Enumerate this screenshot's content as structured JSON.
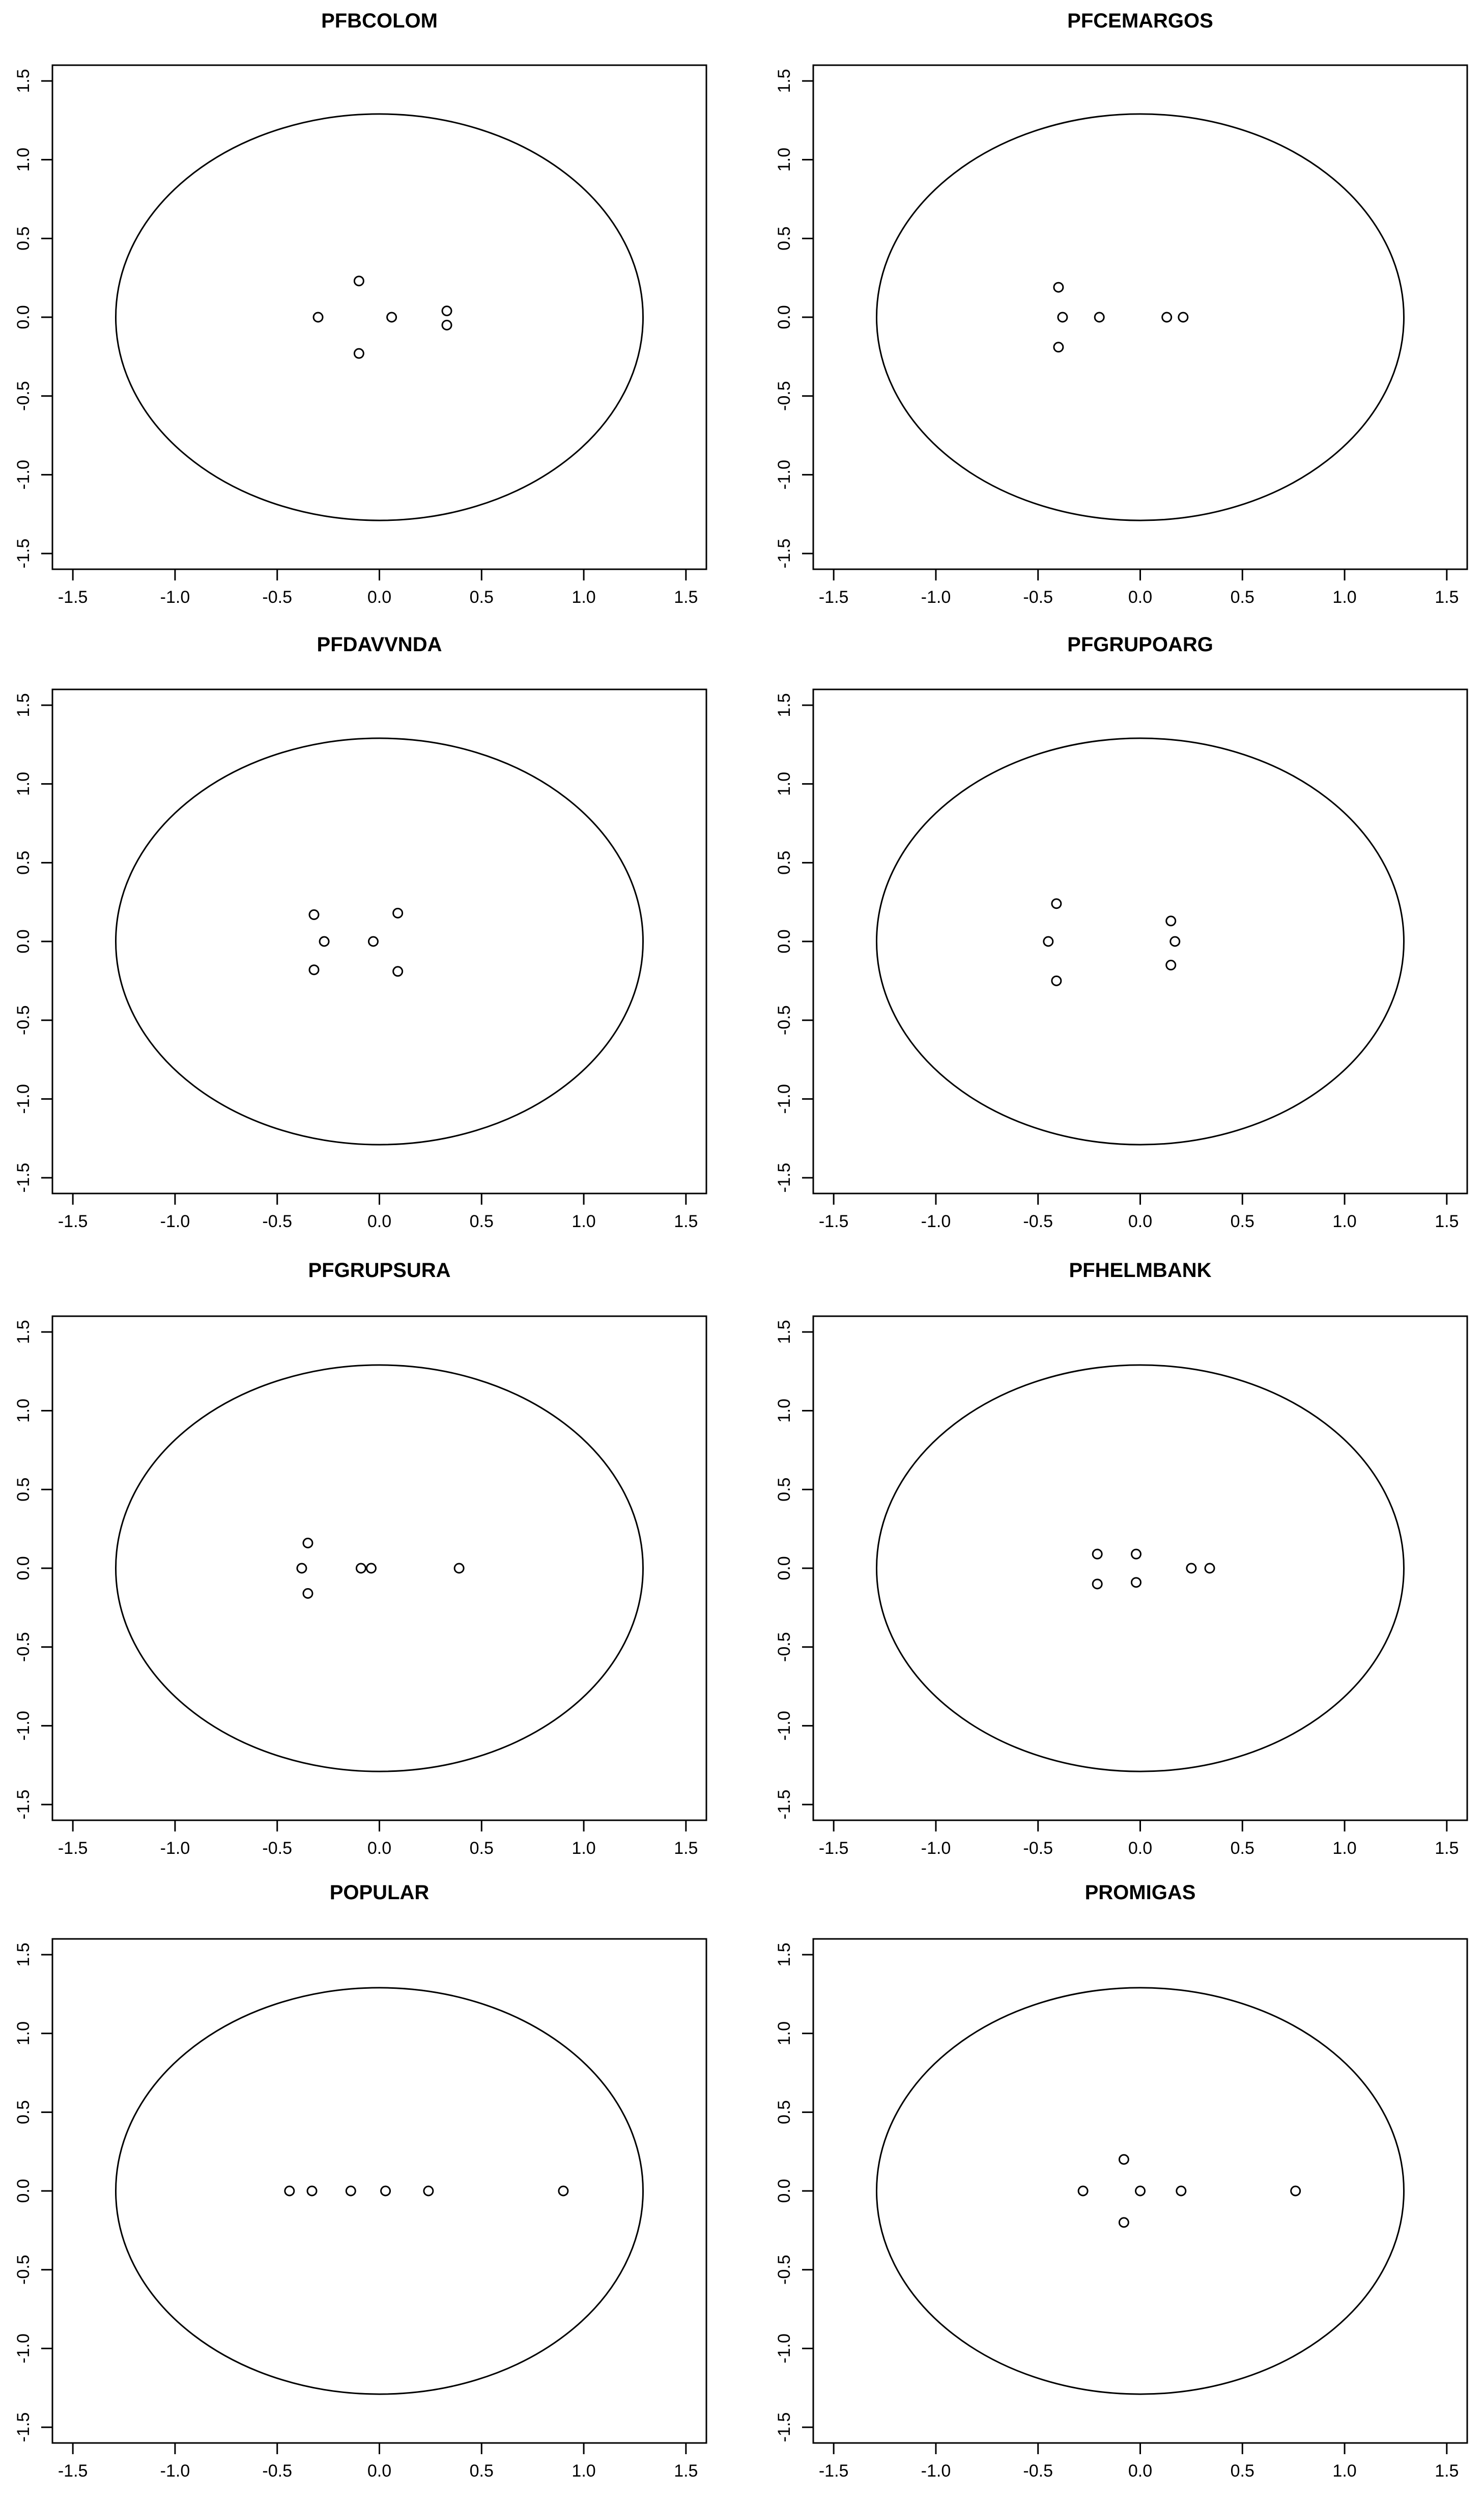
{
  "chart_data": [
    {
      "type": "scatter",
      "title": "PFBCOLOM",
      "xlim": [
        -1.6,
        1.6
      ],
      "ylim": [
        -1.6,
        1.6
      ],
      "ticks": [
        -1.5,
        -1.0,
        -0.5,
        0.0,
        0.5,
        1.0,
        1.5
      ],
      "tick_labels": [
        "-1.5",
        "-1.0",
        "-0.5",
        "0.0",
        "0.5",
        "1.0",
        "1.5"
      ],
      "circle_radius": 1.29,
      "points": [
        {
          "x": -0.3,
          "y": 0.0
        },
        {
          "x": -0.1,
          "y": 0.23
        },
        {
          "x": -0.1,
          "y": -0.23
        },
        {
          "x": 0.06,
          "y": 0.0
        },
        {
          "x": 0.33,
          "y": 0.04
        },
        {
          "x": 0.33,
          "y": -0.05
        }
      ]
    },
    {
      "type": "scatter",
      "title": "PFCEMARGOS",
      "xlim": [
        -1.6,
        1.6
      ],
      "ylim": [
        -1.6,
        1.6
      ],
      "ticks": [
        -1.5,
        -1.0,
        -0.5,
        0.0,
        0.5,
        1.0,
        1.5
      ],
      "tick_labels": [
        "-1.5",
        "-1.0",
        "-0.5",
        "0.0",
        "0.5",
        "1.0",
        "1.5"
      ],
      "circle_radius": 1.29,
      "points": [
        {
          "x": -0.4,
          "y": 0.19
        },
        {
          "x": -0.38,
          "y": 0.0
        },
        {
          "x": -0.4,
          "y": -0.19
        },
        {
          "x": -0.2,
          "y": 0.0
        },
        {
          "x": 0.13,
          "y": 0.0
        },
        {
          "x": 0.21,
          "y": 0.0
        }
      ]
    },
    {
      "type": "scatter",
      "title": "PFDAVVNDA",
      "xlim": [
        -1.6,
        1.6
      ],
      "ylim": [
        -1.6,
        1.6
      ],
      "ticks": [
        -1.5,
        -1.0,
        -0.5,
        0.0,
        0.5,
        1.0,
        1.5
      ],
      "tick_labels": [
        "-1.5",
        "-1.0",
        "-0.5",
        "0.0",
        "0.5",
        "1.0",
        "1.5"
      ],
      "circle_radius": 1.29,
      "points": [
        {
          "x": -0.32,
          "y": 0.17
        },
        {
          "x": -0.27,
          "y": 0.0
        },
        {
          "x": -0.32,
          "y": -0.18
        },
        {
          "x": -0.03,
          "y": 0.0
        },
        {
          "x": 0.09,
          "y": 0.18
        },
        {
          "x": 0.09,
          "y": -0.19
        }
      ]
    },
    {
      "type": "scatter",
      "title": "PFGRUPOARG",
      "xlim": [
        -1.6,
        1.6
      ],
      "ylim": [
        -1.6,
        1.6
      ],
      "ticks": [
        -1.5,
        -1.0,
        -0.5,
        0.0,
        0.5,
        1.0,
        1.5
      ],
      "tick_labels": [
        "-1.5",
        "-1.0",
        "-0.5",
        "0.0",
        "0.5",
        "1.0",
        "1.5"
      ],
      "circle_radius": 1.29,
      "points": [
        {
          "x": -0.41,
          "y": 0.24
        },
        {
          "x": -0.45,
          "y": 0.0
        },
        {
          "x": -0.41,
          "y": -0.25
        },
        {
          "x": 0.15,
          "y": 0.13
        },
        {
          "x": 0.17,
          "y": 0.0
        },
        {
          "x": 0.15,
          "y": -0.15
        }
      ]
    },
    {
      "type": "scatter",
      "title": "PFGRUPSURA",
      "xlim": [
        -1.6,
        1.6
      ],
      "ylim": [
        -1.6,
        1.6
      ],
      "ticks": [
        -1.5,
        -1.0,
        -0.5,
        0.0,
        0.5,
        1.0,
        1.5
      ],
      "tick_labels": [
        "-1.5",
        "-1.0",
        "-0.5",
        "0.0",
        "0.5",
        "1.0",
        "1.5"
      ],
      "circle_radius": 1.29,
      "points": [
        {
          "x": -0.35,
          "y": 0.16
        },
        {
          "x": -0.38,
          "y": 0.0
        },
        {
          "x": -0.35,
          "y": -0.16
        },
        {
          "x": -0.09,
          "y": 0.0
        },
        {
          "x": -0.04,
          "y": 0.0
        },
        {
          "x": 0.39,
          "y": 0.0
        }
      ]
    },
    {
      "type": "scatter",
      "title": "PFHELMBANK",
      "xlim": [
        -1.6,
        1.6
      ],
      "ylim": [
        -1.6,
        1.6
      ],
      "ticks": [
        -1.5,
        -1.0,
        -0.5,
        0.0,
        0.5,
        1.0,
        1.5
      ],
      "tick_labels": [
        "-1.5",
        "-1.0",
        "-0.5",
        "0.0",
        "0.5",
        "1.0",
        "1.5"
      ],
      "circle_radius": 1.29,
      "points": [
        {
          "x": -0.21,
          "y": 0.09
        },
        {
          "x": -0.21,
          "y": -0.1
        },
        {
          "x": -0.02,
          "y": 0.09
        },
        {
          "x": -0.02,
          "y": -0.09
        },
        {
          "x": 0.25,
          "y": 0.0
        },
        {
          "x": 0.34,
          "y": 0.0
        }
      ]
    },
    {
      "type": "scatter",
      "title": "POPULAR",
      "xlim": [
        -1.6,
        1.6
      ],
      "ylim": [
        -1.6,
        1.6
      ],
      "ticks": [
        -1.5,
        -1.0,
        -0.5,
        0.0,
        0.5,
        1.0,
        1.5
      ],
      "tick_labels": [
        "-1.5",
        "-1.0",
        "-0.5",
        "0.0",
        "0.5",
        "1.0",
        "1.5"
      ],
      "circle_radius": 1.29,
      "points": [
        {
          "x": -0.44,
          "y": 0.0
        },
        {
          "x": -0.33,
          "y": 0.0
        },
        {
          "x": -0.14,
          "y": 0.0
        },
        {
          "x": 0.03,
          "y": 0.0
        },
        {
          "x": 0.24,
          "y": 0.0
        },
        {
          "x": 0.9,
          "y": 0.0
        }
      ]
    },
    {
      "type": "scatter",
      "title": "PROMIGAS",
      "xlim": [
        -1.6,
        1.6
      ],
      "ylim": [
        -1.6,
        1.6
      ],
      "ticks": [
        -1.5,
        -1.0,
        -0.5,
        0.0,
        0.5,
        1.0,
        1.5
      ],
      "tick_labels": [
        "-1.5",
        "-1.0",
        "-0.5",
        "0.0",
        "0.5",
        "1.0",
        "1.5"
      ],
      "circle_radius": 1.29,
      "points": [
        {
          "x": -0.28,
          "y": 0.0
        },
        {
          "x": -0.08,
          "y": 0.2
        },
        {
          "x": -0.08,
          "y": -0.2
        },
        {
          "x": 0.0,
          "y": 0.0
        },
        {
          "x": 0.2,
          "y": 0.0
        },
        {
          "x": 0.76,
          "y": 0.0
        }
      ]
    }
  ]
}
